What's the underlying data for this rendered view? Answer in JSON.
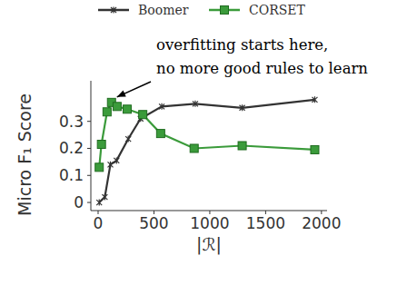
{
  "chart_data": {
    "type": "line",
    "y_label": "Micro F₁ Score",
    "x_label": "|ℛ|",
    "annotation": [
      "overfitting starts here,",
      "no more good rules to learn"
    ],
    "xlim": [
      -65,
      2050
    ],
    "ylim": [
      -0.03,
      0.45
    ],
    "xticks": [
      0,
      500,
      1000,
      1500,
      2000
    ],
    "yticks": [
      0,
      0.1,
      0.2,
      0.3
    ],
    "grid": false,
    "legend": "top",
    "series": [
      {
        "name": "Boomer",
        "color": "#333333",
        "marker": "star",
        "line_style": "solid",
        "x": [
          10,
          60,
          110,
          165,
          270,
          380,
          570,
          870,
          1290,
          1940
        ],
        "values": [
          0.0,
          0.02,
          0.14,
          0.155,
          0.235,
          0.31,
          0.355,
          0.365,
          0.35,
          0.38
        ]
      },
      {
        "name": "CORSET",
        "color": "#3b9b3b",
        "marker": "square",
        "line_style": "solid",
        "x": [
          10,
          30,
          80,
          120,
          170,
          260,
          400,
          560,
          860,
          1290,
          1940
        ],
        "values": [
          0.13,
          0.215,
          0.335,
          0.37,
          0.355,
          0.345,
          0.325,
          0.255,
          0.2,
          0.21,
          0.195
        ]
      }
    ]
  }
}
